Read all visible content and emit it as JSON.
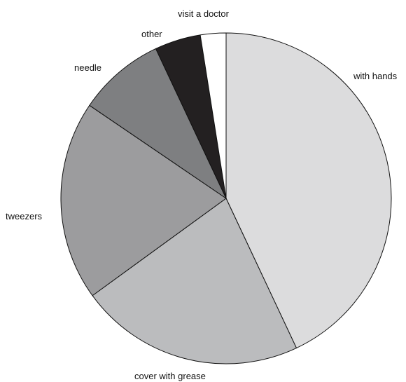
{
  "chart_data": {
    "type": "pie",
    "categories": [
      "with hands",
      "cover with grease",
      "tweezers",
      "needle",
      "other",
      "visit a doctor"
    ],
    "values": [
      43,
      22,
      19.5,
      8.5,
      4.5,
      2.5
    ],
    "unit": "percent",
    "colors": [
      "#dcdcdd",
      "#bbbcbe",
      "#9c9c9e",
      "#7e7f81",
      "#232021",
      "#ffffff"
    ],
    "title": ""
  }
}
